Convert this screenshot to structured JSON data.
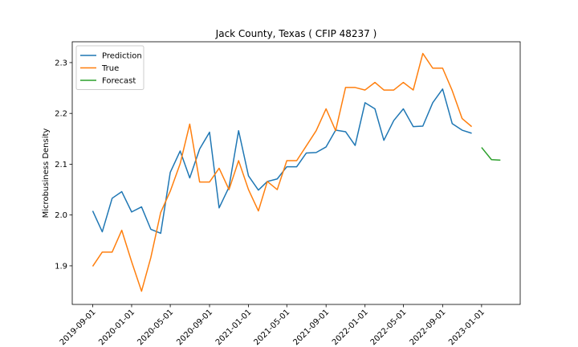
{
  "chart_data": {
    "type": "line",
    "title": "Jack County, Texas ( CFIP 48237 )",
    "y_label": "Microbusiness Density",
    "series": [
      {
        "name": "Prediction",
        "color": "#1f77b4",
        "x": [
          "2019-09-01",
          "2019-10-01",
          "2019-11-01",
          "2019-12-01",
          "2020-01-01",
          "2020-02-01",
          "2020-03-01",
          "2020-04-01",
          "2020-05-01",
          "2020-06-01",
          "2020-07-01",
          "2020-08-01",
          "2020-09-01",
          "2020-10-01",
          "2020-11-01",
          "2020-12-01",
          "2021-01-01",
          "2021-02-01",
          "2021-03-01",
          "2021-04-01",
          "2021-05-01",
          "2021-06-01",
          "2021-07-01",
          "2021-08-01",
          "2021-09-01",
          "2021-10-01",
          "2021-11-01",
          "2021-12-01",
          "2022-01-01",
          "2022-02-01",
          "2022-03-01",
          "2022-04-01",
          "2022-05-01",
          "2022-06-01",
          "2022-07-01",
          "2022-08-01",
          "2022-09-01",
          "2022-10-01",
          "2022-11-01",
          "2022-12-01"
        ],
        "values": [
          2.008,
          1.967,
          2.033,
          2.046,
          2.006,
          2.016,
          1.972,
          1.964,
          2.084,
          2.126,
          2.073,
          2.13,
          2.163,
          2.014,
          2.055,
          2.166,
          2.077,
          2.049,
          2.066,
          2.071,
          2.095,
          2.095,
          2.122,
          2.123,
          2.134,
          2.167,
          2.164,
          2.137,
          2.221,
          2.209,
          2.147,
          2.186,
          2.209,
          2.174,
          2.175,
          2.221,
          2.248,
          2.18,
          2.167,
          2.161
        ]
      },
      {
        "name": "True",
        "color": "#ff7f0e",
        "x": [
          "2019-09-01",
          "2019-10-01",
          "2019-11-01",
          "2019-12-01",
          "2020-01-01",
          "2020-02-01",
          "2020-03-01",
          "2020-04-01",
          "2020-05-01",
          "2020-06-01",
          "2020-07-01",
          "2020-08-01",
          "2020-09-01",
          "2020-10-01",
          "2020-11-01",
          "2020-12-01",
          "2021-01-01",
          "2021-02-01",
          "2021-03-01",
          "2021-04-01",
          "2021-05-01",
          "2021-06-01",
          "2021-07-01",
          "2021-08-01",
          "2021-09-01",
          "2021-10-01",
          "2021-11-01",
          "2021-12-01",
          "2022-01-01",
          "2022-02-01",
          "2022-03-01",
          "2022-04-01",
          "2022-05-01",
          "2022-06-01",
          "2022-07-01",
          "2022-08-01",
          "2022-09-01",
          "2022-10-01",
          "2022-11-01",
          "2022-12-01"
        ],
        "values": [
          1.899,
          1.927,
          1.927,
          1.97,
          1.908,
          1.85,
          1.916,
          2.005,
          2.047,
          2.101,
          2.179,
          2.065,
          2.065,
          2.092,
          2.05,
          2.107,
          2.05,
          2.008,
          2.066,
          2.05,
          2.107,
          2.107,
          2.136,
          2.166,
          2.209,
          2.166,
          2.251,
          2.251,
          2.246,
          2.261,
          2.246,
          2.246,
          2.261,
          2.246,
          2.318,
          2.289,
          2.289,
          2.245,
          2.19,
          2.174
        ]
      },
      {
        "name": "Forecast",
        "color": "#2ca02c",
        "x": [
          "2023-01-01",
          "2023-02-01",
          "2023-03-01"
        ],
        "values": [
          2.133,
          2.109,
          2.108
        ]
      }
    ],
    "xlim": [
      "2019-06-29",
      "2023-05-02"
    ],
    "xticks": [
      "2019-09-01",
      "2020-01-01",
      "2020-05-01",
      "2020-09-01",
      "2021-01-01",
      "2021-05-01",
      "2021-09-01",
      "2022-01-01",
      "2022-05-01",
      "2022-09-01",
      "2023-01-01"
    ],
    "ylim": [
      1.824,
      2.341
    ],
    "yticks": [
      {
        "value": 1.9,
        "label": "1.9"
      },
      {
        "value": 2.0,
        "label": "2.0"
      },
      {
        "value": 2.1,
        "label": "2.1"
      },
      {
        "value": 2.2,
        "label": "2.2"
      },
      {
        "value": 2.3,
        "label": "2.3"
      }
    ],
    "legend": "upper-left",
    "grid": false
  }
}
